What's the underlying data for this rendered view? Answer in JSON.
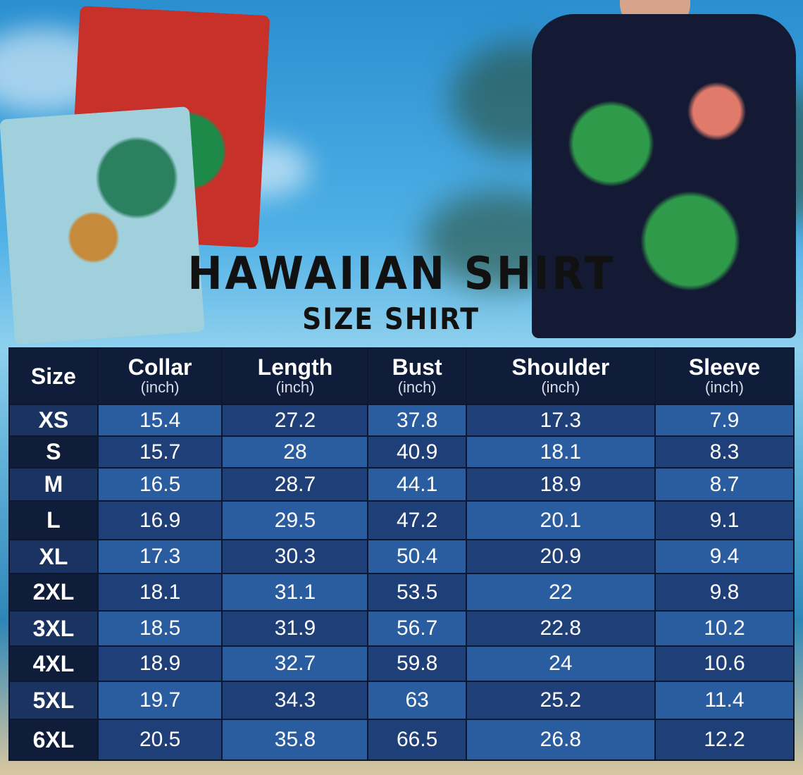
{
  "title": "HAWAIIAN SHIRT",
  "subtitle": "SIZE SHIRT",
  "table": {
    "headers": [
      {
        "label": "Size",
        "unit": ""
      },
      {
        "label": "Collar",
        "unit": "(inch)"
      },
      {
        "label": "Length",
        "unit": "(inch)"
      },
      {
        "label": "Bust",
        "unit": "(inch)"
      },
      {
        "label": "Shoulder",
        "unit": "(inch)"
      },
      {
        "label": "Sleeve",
        "unit": "(inch)"
      }
    ],
    "rows": [
      [
        "XS",
        "15.4",
        "27.2",
        "37.8",
        "17.3",
        "7.9"
      ],
      [
        "S",
        "15.7",
        "28",
        "40.9",
        "18.1",
        "8.3"
      ],
      [
        "M",
        "16.5",
        "28.7",
        "44.1",
        "18.9",
        "8.7"
      ],
      [
        "L",
        "16.9",
        "29.5",
        "47.2",
        "20.1",
        "9.1"
      ],
      [
        "XL",
        "17.3",
        "30.3",
        "50.4",
        "20.9",
        "9.4"
      ],
      [
        "2XL",
        "18.1",
        "31.1",
        "53.5",
        "22",
        "9.8"
      ],
      [
        "3XL",
        "18.5",
        "31.9",
        "56.7",
        "22.8",
        "10.2"
      ],
      [
        "4XL",
        "18.9",
        "32.7",
        "59.8",
        "24",
        "10.6"
      ],
      [
        "5XL",
        "19.7",
        "34.3",
        "63",
        "25.2",
        "11.4"
      ],
      [
        "6XL",
        "20.5",
        "35.8",
        "66.5",
        "26.8",
        "12.2"
      ]
    ]
  },
  "colors": {
    "header_bg": "#0f1d3a",
    "cell_dark": "#1e3f78",
    "cell_light": "#2a5ca0"
  }
}
